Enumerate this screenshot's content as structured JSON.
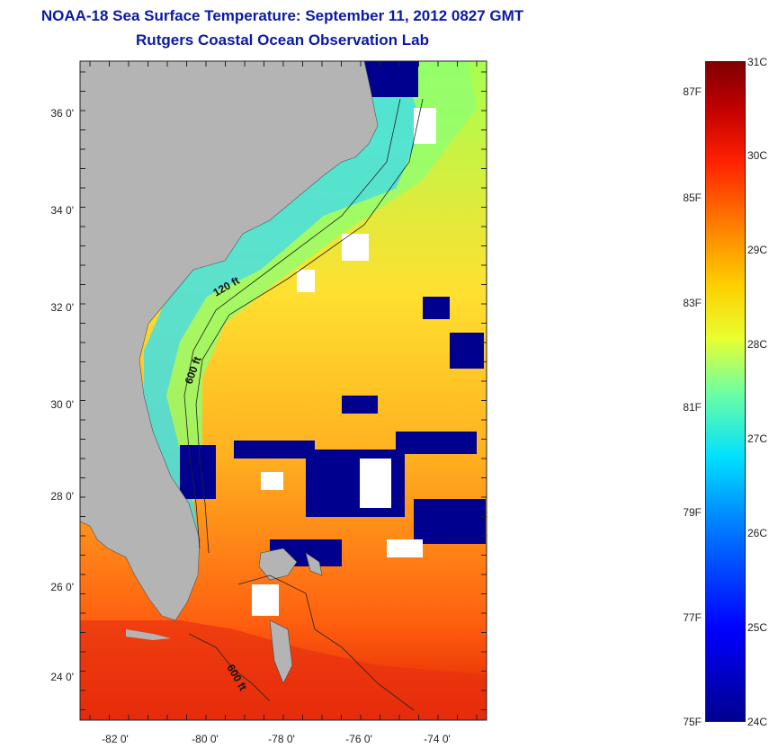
{
  "header": {
    "title": "NOAA-18 Sea Surface Temperature:  September 11, 2012 0827 GMT",
    "subtitle": "Rutgers Coastal Ocean Observation Lab"
  },
  "map": {
    "lat_labels": [
      "36 0'",
      "34 0'",
      "32 0'",
      "30 0'",
      "28 0'",
      "26 0'",
      "24 0'"
    ],
    "lon_labels": [
      "-82 0'",
      "-80 0'",
      "-78 0'",
      "-76 0'",
      "-74 0'"
    ],
    "contour_labels": [
      "120 ft",
      "600 ft",
      "600 ft"
    ],
    "colors": {
      "land": "#b4b4b4",
      "cloud": "#00008f",
      "no_data": "#ffffff"
    }
  },
  "colorbar": {
    "fahrenheit_labels": [
      "87F",
      "85F",
      "83F",
      "81F",
      "79F",
      "77F",
      "75F"
    ],
    "celsius_labels": [
      "31C",
      "30C",
      "29C",
      "28C",
      "27C",
      "26C",
      "25C",
      "24C"
    ]
  }
}
